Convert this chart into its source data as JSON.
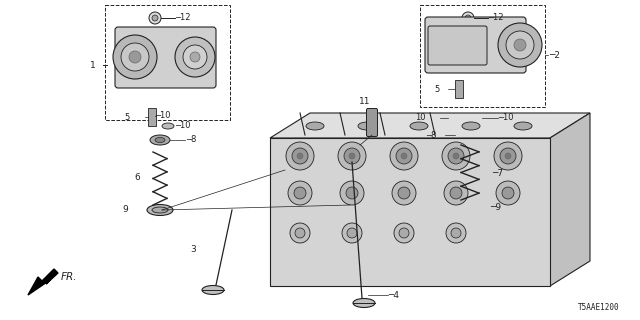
{
  "background_color": "#ffffff",
  "diagram_code": "T5AAE1200",
  "fig_w": 6.4,
  "fig_h": 3.2,
  "dpi": 100
}
